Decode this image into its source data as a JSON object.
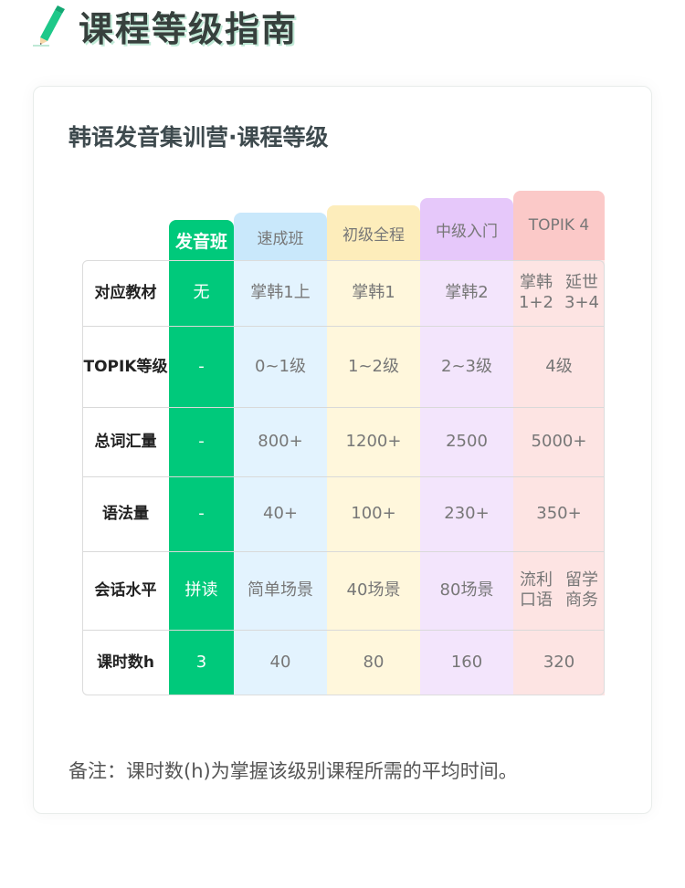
{
  "header": {
    "title": "课程等级指南"
  },
  "card": {
    "title": "韩语发音集训营·课程等级",
    "note": "备注：课时数(h)为掌握该级别课程所需的平均时间。"
  },
  "table": {
    "columns": [
      {
        "label": "发音班",
        "bg": "#00c97b",
        "head_bg": "#00c97b",
        "color": "#ffffff"
      },
      {
        "label": "速成班",
        "bg": "#e3f3fe",
        "head_bg": "#c9e8fb",
        "color": "#777777"
      },
      {
        "label": "初级全程",
        "bg": "#fff7dc",
        "head_bg": "#fdedbb",
        "color": "#777777"
      },
      {
        "label": "中级入门",
        "bg": "#f3e5fc",
        "head_bg": "#e6c8fa",
        "color": "#777777"
      },
      {
        "label": "TOPIK 4",
        "bg": "#fde4e3",
        "head_bg": "#fbc9c8",
        "color": "#777777"
      }
    ],
    "rows": [
      {
        "label": "对应教材",
        "cells": [
          "无",
          "掌韩1上",
          "掌韩1",
          "掌韩2",
          "掌韩1+2\n延世3+4"
        ]
      },
      {
        "label": "TOPIK等级",
        "cells": [
          "-",
          "0~1级",
          "1~2级",
          "2~3级",
          "4级"
        ]
      },
      {
        "label": "总词汇量",
        "cells": [
          "-",
          "800+",
          "1200+",
          "2500",
          "5000+"
        ]
      },
      {
        "label": "语法量",
        "cells": [
          "-",
          "40+",
          "100+",
          "230+",
          "350+"
        ]
      },
      {
        "label": "会话水平",
        "cells": [
          "拼读",
          "简单场景",
          "40场景",
          "80场景",
          "流利口语\n留学商务"
        ]
      },
      {
        "label": "课时数h",
        "cells": [
          "3",
          "40",
          "80",
          "160",
          "320"
        ]
      }
    ]
  }
}
